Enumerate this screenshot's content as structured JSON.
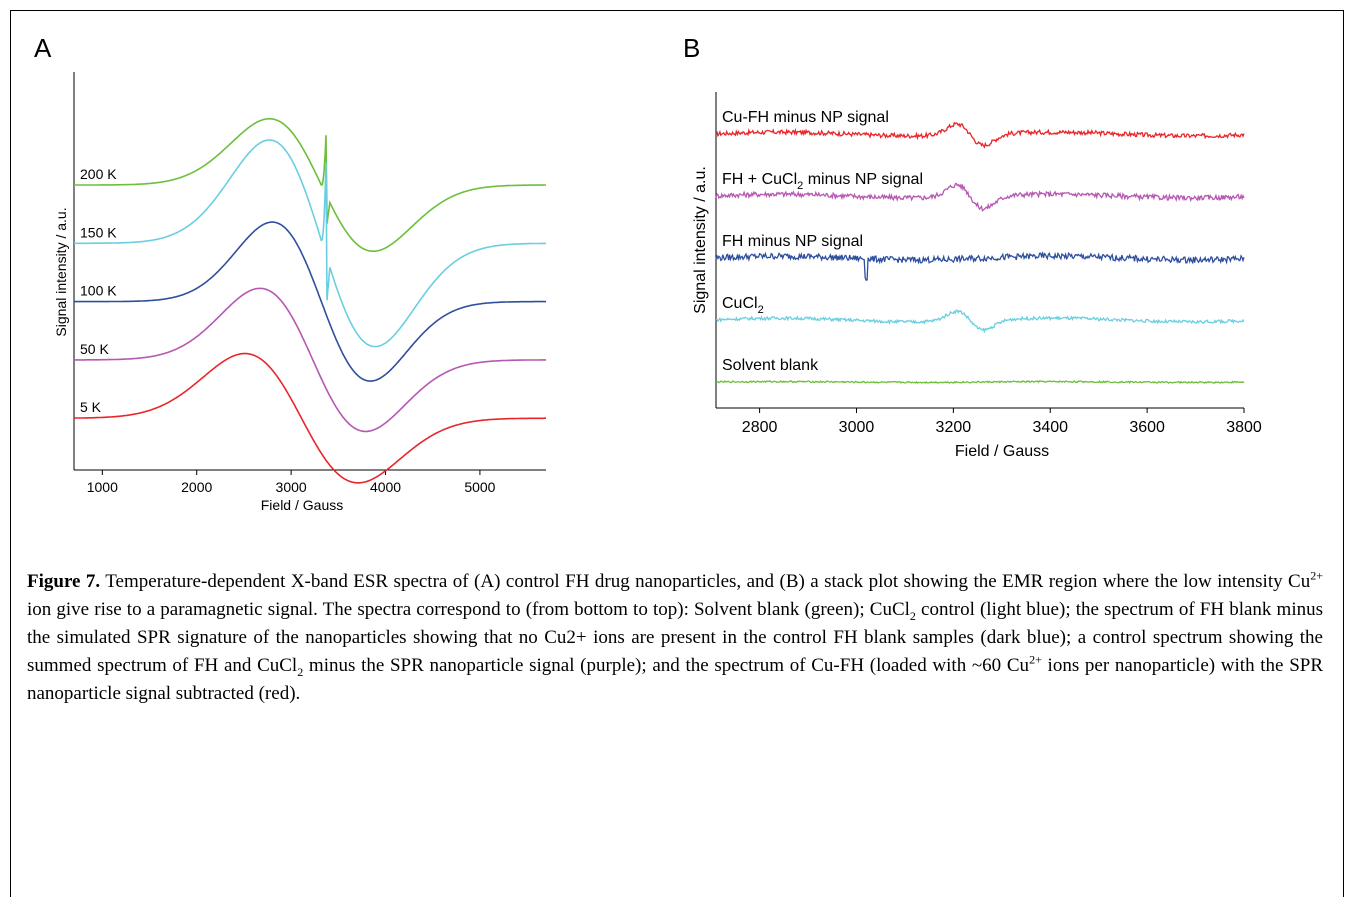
{
  "figure": {
    "panel_a_label": "A",
    "panel_b_label": "B",
    "caption": {
      "bold_label": "Figure 7.",
      "parts": [
        " Temperature-dependent X-band ESR spectra of (A) control FH drug nanoparticles, and (B) a stack plot showing the EMR region where the low intensity Cu",
        "2+",
        " ion give rise to a paramagnetic signal. The spectra correspond to (from bottom to top): Solvent blank (green); CuCl",
        "2",
        " control (light blue); the spectrum of FH blank minus the simulated SPR signature of the nanoparticles showing that no Cu2+ ions are present in the control FH blank samples (dark blue); a control spectrum showing the summed spectrum of FH and CuCl",
        "2",
        " minus the SPR nanoparticle signal (purple); and the spectrum of Cu-FH (loaded with ~60 Cu",
        "2+",
        " ions per nanoparticle) with the SPR nanoparticle signal subtracted (red)."
      ]
    }
  },
  "chart_data": [
    {
      "panel": "A",
      "type": "line",
      "xlabel": "Field / Gauss",
      "ylabel": "Signal intensity / a.u.",
      "xlim": [
        700,
        5700
      ],
      "x_ticks": [
        1000,
        2000,
        3000,
        4000,
        5000
      ],
      "y_ticks": false,
      "series": [
        {
          "name": "200 K",
          "color": "#6cbf3a",
          "baseline": 5.0,
          "center": 3320,
          "amp": 1.25,
          "width": 550,
          "sharp_spike": true
        },
        {
          "name": "150 K",
          "color": "#69cfe0",
          "baseline": 3.9,
          "center": 3330,
          "amp": 1.95,
          "width": 560,
          "sharp_spike": true
        },
        {
          "name": "100 K",
          "color": "#2e4f9e",
          "baseline": 2.8,
          "center": 3320,
          "amp": 1.5,
          "width": 520,
          "sharp_spike": false
        },
        {
          "name": "50 K",
          "color": "#b657b2",
          "baseline": 1.7,
          "center": 3230,
          "amp": 1.35,
          "width": 560,
          "sharp_spike": false
        },
        {
          "name": "5 K",
          "color": "#e8262a",
          "baseline": 0.6,
          "center": 3110,
          "amp": 1.22,
          "width": 600,
          "sharp_spike": false
        }
      ]
    },
    {
      "panel": "B",
      "type": "line",
      "xlabel": "Field / Gauss",
      "ylabel": "Signal intensity / a.u.",
      "xlim": [
        2710,
        3800
      ],
      "x_ticks": [
        2800,
        3000,
        3200,
        3400,
        3600,
        3800
      ],
      "y_ticks": false,
      "series": [
        {
          "name": "Cu-FH minus NP signal",
          "color": "#e8262a",
          "offset": 4,
          "feature_amp": 0.18,
          "noise": 0.035
        },
        {
          "name": "FH + CuCl₂ minus NP signal",
          "label_parts": [
            "FH + CuCl",
            "2",
            " minus NP signal"
          ],
          "color": "#b657b2",
          "offset": 3,
          "feature_amp": 0.2,
          "noise": 0.04
        },
        {
          "name": "FH minus NP signal",
          "color": "#2e4f9e",
          "offset": 2,
          "feature_amp": 0.0,
          "noise": 0.05
        },
        {
          "name": "CuCl₂",
          "label_parts": [
            "CuCl",
            "2",
            ""
          ],
          "color": "#69cfe0",
          "offset": 1,
          "feature_amp": 0.16,
          "noise": 0.025
        },
        {
          "name": "Solvent blank",
          "color": "#6cbf3a",
          "offset": 0,
          "feature_amp": 0.0,
          "noise": 0.012
        }
      ]
    }
  ]
}
